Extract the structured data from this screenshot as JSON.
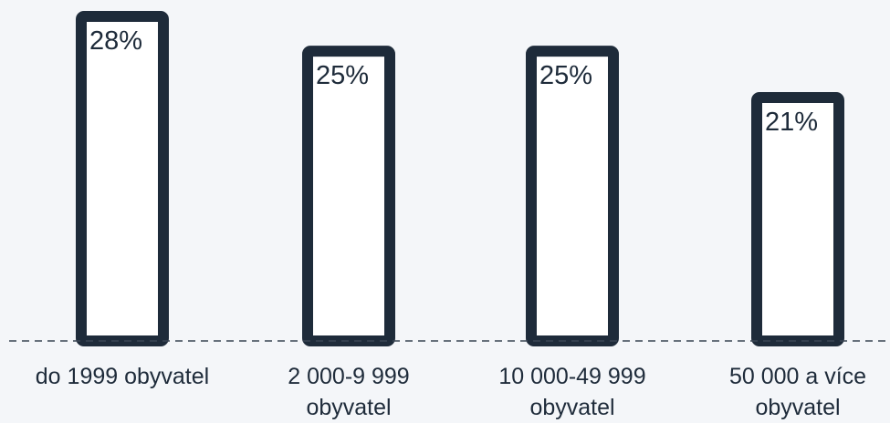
{
  "chart_data": {
    "type": "bar",
    "categories": [
      [
        "do 1999 obyvatel"
      ],
      [
        "2 000-9 999",
        "obyvatel"
      ],
      [
        "10 000-49 999",
        "obyvatel"
      ],
      [
        "50 000 a více",
        "obyvatel"
      ]
    ],
    "values": [
      28,
      25,
      25,
      21
    ],
    "value_labels": [
      "28%",
      "25%",
      "25%",
      "21%"
    ],
    "value_unit": "%",
    "title": "",
    "xlabel": "",
    "ylabel": "",
    "ylim": [
      0,
      30
    ],
    "grid": false,
    "legend": "none",
    "colors": {
      "bar_fill": "#ffffff",
      "bar_stroke": "#1e2b3a",
      "text": "#1e2b3a",
      "background": "#f4f6f9",
      "baseline": "#3a4654"
    }
  }
}
